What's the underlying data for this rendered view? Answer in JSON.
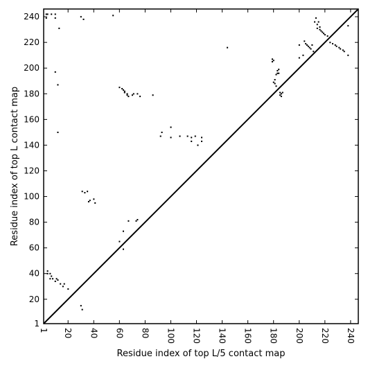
{
  "chart_data": {
    "type": "scatter",
    "title": "",
    "xlabel": "Residue index of top L/5 contact map",
    "ylabel": "Residue index of top L contact map",
    "xlim": [
      1,
      246
    ],
    "ylim": [
      1,
      246
    ],
    "xticks": [
      1,
      20,
      40,
      60,
      80,
      100,
      120,
      140,
      160,
      180,
      200,
      220,
      240
    ],
    "yticks": [
      1,
      20,
      40,
      60,
      80,
      100,
      120,
      140,
      160,
      180,
      200,
      220,
      240
    ],
    "grid": false,
    "diagonal": true,
    "marker": "square",
    "point_color": "#000000",
    "upper_triangle": {
      "x": [
        3,
        3,
        4,
        7,
        10,
        10,
        13,
        10,
        12,
        12,
        30,
        32,
        55,
        60,
        62,
        63,
        64,
        64,
        66,
        66,
        67,
        70,
        71,
        74,
        76,
        86,
        92,
        93,
        100,
        100,
        107,
        113,
        116,
        116,
        119,
        121,
        124,
        124,
        144,
        179,
        179,
        180,
        180,
        181,
        181,
        182,
        182,
        183,
        183,
        184,
        184,
        185,
        185,
        186,
        186,
        187,
        200,
        200,
        203,
        204,
        205,
        206,
        207,
        208,
        209,
        210,
        211,
        212,
        213,
        214,
        214,
        215,
        216,
        216,
        217,
        218,
        219,
        220,
        222,
        224,
        226,
        228,
        229,
        231,
        232,
        234,
        235,
        238,
        238
      ],
      "y": [
        239,
        242,
        242,
        242,
        242,
        239,
        231,
        197,
        187,
        150,
        240,
        238,
        241,
        185,
        184,
        183,
        182,
        181,
        180,
        179,
        178,
        179,
        180,
        180,
        178,
        179,
        147,
        150,
        154,
        146,
        147,
        147,
        143,
        146,
        147,
        140,
        143,
        146,
        216,
        205,
        207,
        206,
        189,
        188,
        191,
        186,
        195,
        196,
        198,
        196,
        199,
        179,
        181,
        178,
        180,
        181,
        208,
        218,
        210,
        221,
        219,
        218,
        217,
        216,
        215,
        218,
        213,
        236,
        239,
        234,
        231,
        236,
        232,
        230,
        229,
        228,
        227,
        226,
        225,
        220,
        219,
        218,
        217,
        216,
        215,
        214,
        213,
        210,
        233
      ]
    },
    "lower_triangle": {
      "x": [
        4,
        4,
        6,
        6,
        7,
        8,
        10,
        11,
        12,
        14,
        16,
        17,
        20,
        30,
        31,
        31,
        33,
        35,
        37,
        36,
        40,
        41,
        60,
        63,
        63,
        67,
        73,
        74
      ],
      "y": [
        42,
        40,
        40,
        36,
        38,
        36,
        34,
        36,
        35,
        32,
        30,
        32,
        28,
        15,
        12,
        104,
        103,
        104,
        97,
        96,
        98,
        95,
        65,
        73,
        59,
        81,
        81,
        82
      ]
    }
  }
}
